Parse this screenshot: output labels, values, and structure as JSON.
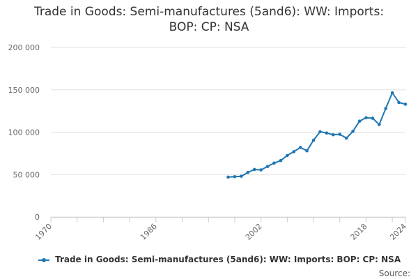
{
  "chart_data": {
    "type": "line",
    "title_line1": "Trade in Goods: Semi-manufactures (5and6): WW: Imports:",
    "title_line2": "BOP: CP: NSA",
    "ylim": [
      0,
      200000
    ],
    "xlim": [
      1970,
      2024
    ],
    "y_ticks": [
      0,
      50000,
      100000,
      150000,
      200000
    ],
    "y_tick_labels": [
      "0",
      "50 000",
      "100 000",
      "150 000",
      "200 000"
    ],
    "x_tick_years": [
      1970,
      1986,
      2002,
      2018,
      2024
    ],
    "x_tick_labels": [
      "1970",
      "1986",
      "2002",
      "2018",
      "2024"
    ],
    "x_minor_years": [
      1974,
      1978,
      1982,
      1990,
      1994,
      1998,
      2006,
      2010,
      2014,
      2022
    ],
    "grid": true,
    "series": [
      {
        "name": "Trade in Goods: Semi-manufactures (5and6): WW: Imports: BOP: CP: NSA",
        "color": "#1f77b4",
        "x": [
          1997,
          1998,
          1999,
          2000,
          2001,
          2002,
          2003,
          2004,
          2005,
          2006,
          2007,
          2008,
          2009,
          2010,
          2011,
          2012,
          2013,
          2014,
          2015,
          2016,
          2017,
          2018,
          2019,
          2020,
          2021,
          2022,
          2023,
          2024
        ],
        "values": [
          47000,
          47500,
          48000,
          52500,
          56000,
          55500,
          59500,
          63500,
          66500,
          72500,
          77000,
          82000,
          78000,
          90500,
          100500,
          99000,
          97000,
          97500,
          93000,
          101000,
          113000,
          117000,
          116500,
          109000,
          128000,
          146500,
          135000,
          133000
        ]
      }
    ],
    "legend_position": "bottom",
    "source_label": "Source:"
  }
}
